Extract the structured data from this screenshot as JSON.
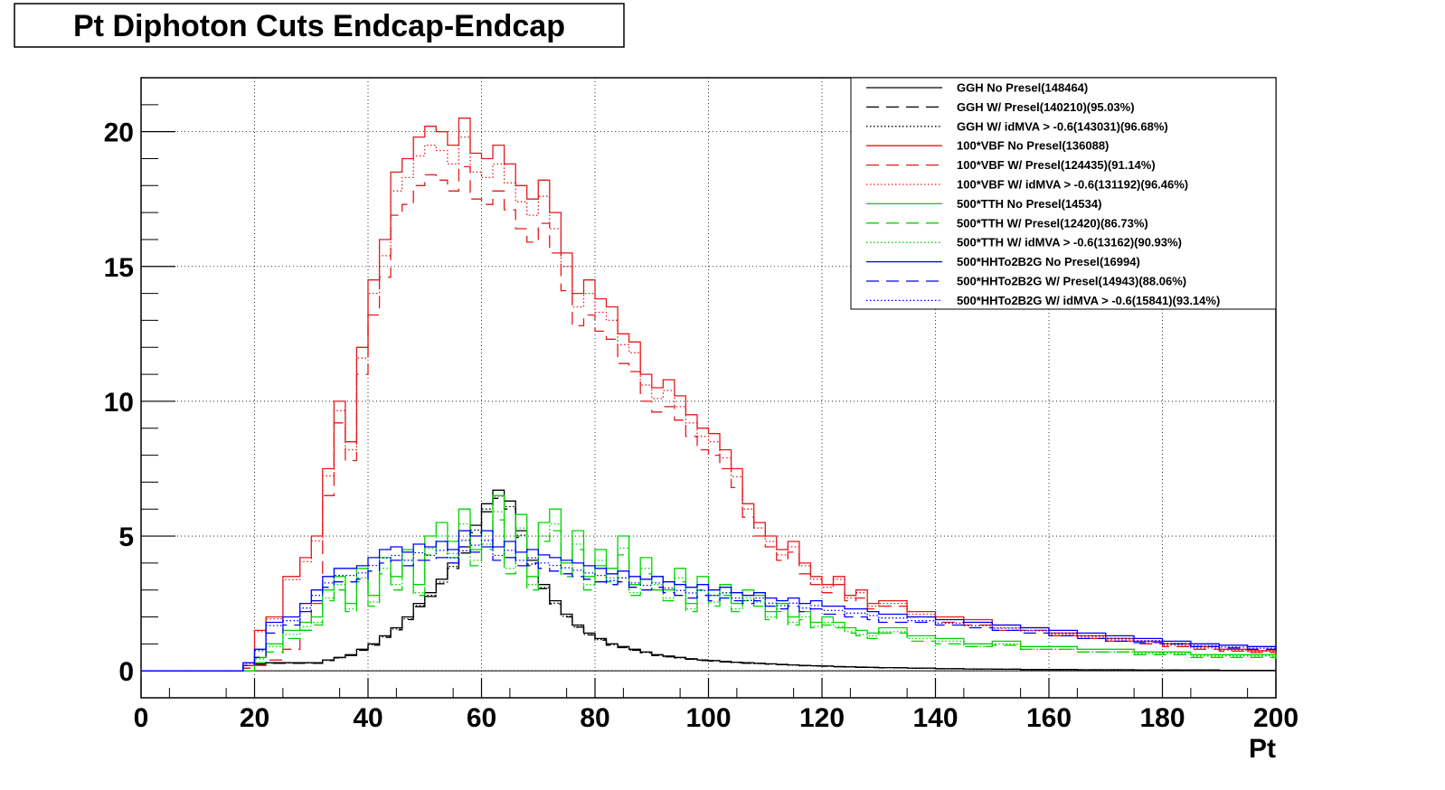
{
  "chart_data": {
    "type": "line",
    "title": "Pt Diphoton Cuts Endcap-Endcap",
    "xlabel": "Pt",
    "ylabel": "",
    "xlim": [
      0,
      200
    ],
    "ylim": [
      -1,
      22
    ],
    "grid": true,
    "legend_position": "top-right",
    "x_ticks": [
      "0",
      "20",
      "40",
      "60",
      "80",
      "100",
      "120",
      "140",
      "160",
      "180",
      "200"
    ],
    "y_ticks": [
      "0",
      "5",
      "10",
      "15",
      "20"
    ],
    "x": [
      0,
      5,
      10,
      15,
      18,
      20,
      22,
      25,
      28,
      30,
      32,
      34,
      36,
      38,
      40,
      42,
      44,
      46,
      48,
      50,
      52,
      54,
      56,
      58,
      60,
      62,
      64,
      66,
      68,
      70,
      72,
      74,
      76,
      78,
      80,
      82,
      84,
      86,
      88,
      90,
      92,
      94,
      96,
      98,
      100,
      102,
      104,
      106,
      108,
      110,
      112,
      114,
      116,
      118,
      120,
      122,
      124,
      126,
      128,
      130,
      135,
      140,
      145,
      150,
      155,
      160,
      165,
      170,
      175,
      180,
      185,
      190,
      195,
      200
    ],
    "series": [
      {
        "name": "GGH No Presel(148464)",
        "color": "#000000",
        "dash": "solid",
        "values": [
          0,
          0,
          0,
          0,
          0.2,
          0.3,
          0.3,
          0.3,
          0.3,
          0.3,
          0.4,
          0.5,
          0.6,
          0.8,
          1.0,
          1.3,
          1.6,
          2.0,
          2.5,
          2.9,
          3.4,
          4.0,
          4.6,
          5.4,
          6.2,
          6.7,
          6.3,
          5.2,
          4.1,
          3.2,
          2.6,
          2.1,
          1.7,
          1.4,
          1.2,
          1.0,
          0.9,
          0.8,
          0.7,
          0.6,
          0.55,
          0.5,
          0.45,
          0.4,
          0.38,
          0.35,
          0.32,
          0.3,
          0.28,
          0.26,
          0.24,
          0.22,
          0.2,
          0.19,
          0.18,
          0.16,
          0.15,
          0.14,
          0.13,
          0.12,
          0.1,
          0.08,
          0.07,
          0.06,
          0.05,
          0.05,
          0.04,
          0.04,
          0.03,
          0.03,
          0.03,
          0.02,
          0.02,
          0.02
        ]
      },
      {
        "name": "GGH W/ Presel(140210)(95.03%)",
        "color": "#000000",
        "dash": "long",
        "values": [
          0,
          0,
          0,
          0,
          0.1,
          0.25,
          0.28,
          0.28,
          0.28,
          0.28,
          0.38,
          0.48,
          0.57,
          0.76,
          0.95,
          1.24,
          1.52,
          1.9,
          2.38,
          2.76,
          3.23,
          3.8,
          4.37,
          5.13,
          5.9,
          6.4,
          6.0,
          4.95,
          3.9,
          3.05,
          2.48,
          2.0,
          1.62,
          1.33,
          1.14,
          0.95,
          0.86,
          0.76,
          0.67,
          0.57,
          0.52,
          0.48,
          0.43,
          0.38,
          0.36,
          0.33,
          0.3,
          0.28,
          0.27,
          0.25,
          0.23,
          0.21,
          0.19,
          0.18,
          0.17,
          0.15,
          0.14,
          0.13,
          0.12,
          0.11,
          0.1,
          0.08,
          0.07,
          0.06,
          0.05,
          0.05,
          0.04,
          0.04,
          0.03,
          0.03,
          0.03,
          0.02,
          0.02,
          0.02
        ]
      },
      {
        "name": "GGH W/ idMVA > -0.6(143031)(96.68%)",
        "color": "#000000",
        "dash": "dot",
        "values": [
          0,
          0,
          0,
          0,
          0.2,
          0.29,
          0.29,
          0.29,
          0.29,
          0.29,
          0.39,
          0.48,
          0.58,
          0.77,
          0.97,
          1.26,
          1.55,
          1.93,
          2.42,
          2.8,
          3.29,
          3.87,
          4.45,
          5.22,
          6.0,
          6.48,
          6.09,
          5.03,
          3.96,
          3.09,
          2.51,
          2.03,
          1.64,
          1.35,
          1.16,
          0.97,
          0.87,
          0.77,
          0.68,
          0.58,
          0.53,
          0.48,
          0.44,
          0.39,
          0.37,
          0.34,
          0.31,
          0.29,
          0.27,
          0.25,
          0.23,
          0.21,
          0.19,
          0.18,
          0.17,
          0.15,
          0.15,
          0.14,
          0.13,
          0.12,
          0.1,
          0.08,
          0.07,
          0.06,
          0.05,
          0.05,
          0.04,
          0.04,
          0.03,
          0.03,
          0.03,
          0.02,
          0.02,
          0.02
        ]
      },
      {
        "name": "100*VBF No Presel(136088)",
        "color": "#e31a1c",
        "dash": "solid",
        "values": [
          0,
          0,
          0,
          0,
          0.2,
          1.5,
          2.0,
          3.5,
          4.2,
          5.0,
          7.5,
          10.0,
          8.5,
          12.0,
          14.5,
          16.0,
          18.5,
          19.0,
          19.8,
          20.2,
          20.0,
          19.5,
          20.5,
          19.2,
          19.0,
          19.5,
          18.8,
          18.0,
          17.5,
          18.2,
          17.0,
          15.5,
          14.0,
          14.5,
          13.8,
          13.5,
          12.5,
          12.2,
          11.0,
          10.5,
          10.8,
          10.2,
          9.5,
          9.0,
          8.8,
          8.2,
          7.5,
          6.2,
          5.5,
          5.0,
          4.5,
          4.8,
          4.0,
          3.5,
          3.2,
          3.5,
          2.8,
          3.0,
          2.5,
          2.6,
          2.2,
          2.0,
          1.9,
          1.7,
          1.6,
          1.4,
          1.3,
          1.2,
          1.1,
          1.0,
          0.9,
          0.8,
          0.75,
          0.7
        ]
      },
      {
        "name": "100*VBF W/ Presel(124435)(91.14%)",
        "color": "#e31a1c",
        "dash": "long",
        "values": [
          0,
          0,
          0,
          0,
          0.1,
          0.2,
          0.4,
          0.8,
          1.5,
          2.5,
          6.5,
          9.2,
          7.8,
          11.0,
          13.2,
          14.6,
          16.9,
          17.3,
          18.0,
          18.4,
          18.2,
          17.8,
          18.7,
          17.5,
          17.3,
          17.8,
          17.1,
          16.4,
          15.9,
          16.6,
          15.5,
          14.1,
          12.8,
          13.2,
          12.6,
          12.3,
          11.4,
          11.1,
          10.0,
          9.6,
          9.8,
          9.3,
          8.7,
          8.2,
          8.0,
          7.5,
          6.8,
          5.7,
          5.0,
          4.6,
          4.1,
          4.4,
          3.6,
          3.2,
          2.9,
          3.2,
          2.6,
          2.7,
          2.3,
          2.4,
          2.0,
          1.8,
          1.7,
          1.5,
          1.5,
          1.3,
          1.2,
          1.1,
          1.0,
          0.9,
          0.8,
          0.73,
          0.68,
          0.64
        ]
      },
      {
        "name": "100*VBF W/ idMVA > -0.6(131192)(96.46%)",
        "color": "#e31a1c",
        "dash": "dot",
        "values": [
          0,
          0,
          0,
          0,
          0.2,
          1.45,
          1.93,
          3.38,
          4.05,
          4.82,
          7.23,
          9.65,
          8.2,
          11.6,
          14.0,
          15.4,
          17.8,
          18.3,
          19.1,
          19.5,
          19.3,
          18.8,
          19.8,
          18.5,
          18.3,
          18.8,
          18.1,
          17.4,
          16.9,
          17.6,
          16.4,
          15.0,
          13.5,
          14.0,
          13.3,
          13.0,
          12.1,
          11.8,
          10.6,
          10.1,
          10.4,
          9.8,
          9.2,
          8.7,
          8.5,
          7.9,
          7.2,
          6.0,
          5.3,
          4.8,
          4.3,
          4.6,
          3.9,
          3.4,
          3.1,
          3.4,
          2.7,
          2.9,
          2.4,
          2.5,
          2.1,
          1.9,
          1.8,
          1.6,
          1.5,
          1.35,
          1.25,
          1.15,
          1.05,
          0.95,
          0.85,
          0.77,
          0.72,
          0.68
        ]
      },
      {
        "name": "500*TTH No Presel(14534)",
        "color": "#00d400",
        "dash": "solid",
        "values": [
          0,
          0,
          0,
          0,
          0,
          0.5,
          1.0,
          1.5,
          1.8,
          2.0,
          3.0,
          3.5,
          2.5,
          3.8,
          2.8,
          4.2,
          3.5,
          4.5,
          3.2,
          5.0,
          5.5,
          4.8,
          6.0,
          4.5,
          5.2,
          6.5,
          4.2,
          5.8,
          3.5,
          5.5,
          6.0,
          4.0,
          5.2,
          3.5,
          4.5,
          3.8,
          5.0,
          3.2,
          4.2,
          3.5,
          3.0,
          3.8,
          2.5,
          3.5,
          2.8,
          3.2,
          2.5,
          3.0,
          2.8,
          2.2,
          2.5,
          2.0,
          2.2,
          1.8,
          2.0,
          1.8,
          1.6,
          1.5,
          1.4,
          1.6,
          1.3,
          1.2,
          1.0,
          1.1,
          0.9,
          0.9,
          0.8,
          0.8,
          0.7,
          0.7,
          0.6,
          0.6,
          0.6,
          0.5
        ]
      },
      {
        "name": "500*TTH W/ Presel(12420)(86.73%)",
        "color": "#00d400",
        "dash": "long",
        "values": [
          0,
          0,
          0,
          0,
          0,
          0.3,
          0.7,
          1.2,
          1.5,
          1.7,
          2.6,
          3.0,
          2.2,
          3.3,
          2.4,
          3.6,
          3.0,
          3.9,
          2.8,
          4.3,
          4.8,
          4.2,
          5.2,
          3.9,
          4.5,
          5.6,
          3.6,
          5.0,
          3.0,
          4.8,
          5.2,
          3.5,
          4.5,
          3.0,
          3.9,
          3.3,
          4.3,
          2.8,
          3.6,
          3.0,
          2.6,
          3.3,
          2.2,
          3.0,
          2.4,
          2.8,
          2.2,
          2.6,
          2.4,
          1.9,
          2.2,
          1.7,
          1.9,
          1.6,
          1.7,
          1.6,
          1.4,
          1.3,
          1.2,
          1.4,
          1.1,
          1.0,
          0.9,
          0.95,
          0.8,
          0.8,
          0.7,
          0.7,
          0.6,
          0.6,
          0.5,
          0.5,
          0.5,
          0.45
        ]
      },
      {
        "name": "500*TTH W/ idMVA > -0.6(13162)(90.93%)",
        "color": "#00d400",
        "dash": "dot",
        "values": [
          0,
          0,
          0,
          0,
          0,
          0.45,
          0.9,
          1.35,
          1.65,
          1.8,
          2.7,
          3.2,
          2.3,
          3.45,
          2.55,
          3.8,
          3.2,
          4.1,
          2.9,
          4.55,
          5.0,
          4.35,
          5.45,
          4.1,
          4.7,
          5.9,
          3.8,
          5.3,
          3.2,
          5.0,
          5.45,
          3.6,
          4.7,
          3.2,
          4.1,
          3.45,
          4.55,
          2.9,
          3.8,
          3.2,
          2.7,
          3.45,
          2.3,
          3.2,
          2.55,
          2.9,
          2.3,
          2.7,
          2.55,
          2.0,
          2.3,
          1.8,
          2.0,
          1.65,
          1.8,
          1.65,
          1.45,
          1.35,
          1.3,
          1.45,
          1.2,
          1.1,
          0.9,
          1.0,
          0.8,
          0.8,
          0.7,
          0.7,
          0.65,
          0.65,
          0.55,
          0.55,
          0.55,
          0.45
        ]
      },
      {
        "name": "500*HHTo2B2G No Presel(16994)",
        "color": "#0000ff",
        "dash": "solid",
        "values": [
          0,
          0,
          0,
          0,
          0.3,
          0.8,
          1.8,
          2.0,
          2.5,
          3.0,
          3.5,
          3.8,
          3.8,
          3.9,
          4.2,
          4.5,
          4.6,
          4.4,
          4.7,
          4.6,
          4.8,
          4.5,
          5.2,
          5.0,
          5.2,
          4.6,
          4.8,
          4.4,
          4.5,
          4.3,
          4.2,
          4.1,
          4.0,
          3.9,
          3.8,
          3.6,
          3.7,
          3.5,
          3.4,
          3.5,
          3.3,
          3.2,
          3.1,
          3.2,
          3.0,
          3.1,
          2.9,
          2.8,
          2.9,
          2.7,
          2.6,
          2.7,
          2.5,
          2.6,
          2.4,
          2.4,
          2.3,
          2.3,
          2.2,
          2.1,
          2.0,
          1.9,
          1.8,
          1.7,
          1.6,
          1.5,
          1.4,
          1.3,
          1.2,
          1.1,
          1.0,
          0.95,
          0.9,
          0.85
        ]
      },
      {
        "name": "500*HHTo2B2G W/ Presel(14943)(88.06%)",
        "color": "#0000ff",
        "dash": "long",
        "values": [
          0,
          0,
          0,
          0,
          0.2,
          0.5,
          1.4,
          1.7,
          2.2,
          2.6,
          3.1,
          3.3,
          3.3,
          3.4,
          3.7,
          4.0,
          4.1,
          3.9,
          4.1,
          4.1,
          4.2,
          4.0,
          4.6,
          4.4,
          4.6,
          4.1,
          4.2,
          3.9,
          4.0,
          3.8,
          3.7,
          3.6,
          3.5,
          3.4,
          3.3,
          3.2,
          3.3,
          3.1,
          3.0,
          3.1,
          2.9,
          2.8,
          2.7,
          2.8,
          2.6,
          2.7,
          2.6,
          2.5,
          2.6,
          2.4,
          2.3,
          2.4,
          2.2,
          2.3,
          2.1,
          2.1,
          2.0,
          2.0,
          1.9,
          1.8,
          1.8,
          1.7,
          1.6,
          1.5,
          1.4,
          1.3,
          1.2,
          1.1,
          1.05,
          1.0,
          0.9,
          0.85,
          0.8,
          0.75
        ]
      },
      {
        "name": "500*HHTo2B2G W/ idMVA > -0.6(15841)(93.14%)",
        "color": "#0000ff",
        "dash": "dot",
        "values": [
          0,
          0,
          0,
          0,
          0.28,
          0.75,
          1.68,
          1.86,
          2.33,
          2.8,
          3.26,
          3.54,
          3.54,
          3.63,
          3.91,
          4.19,
          4.28,
          4.1,
          4.38,
          4.28,
          4.47,
          4.19,
          4.84,
          4.66,
          4.84,
          4.28,
          4.47,
          4.1,
          4.19,
          4.0,
          3.91,
          3.82,
          3.73,
          3.63,
          3.54,
          3.35,
          3.45,
          3.26,
          3.17,
          3.26,
          3.07,
          2.98,
          2.89,
          2.98,
          2.8,
          2.89,
          2.7,
          2.61,
          2.7,
          2.51,
          2.42,
          2.51,
          2.33,
          2.42,
          2.24,
          2.24,
          2.14,
          2.14,
          2.05,
          1.96,
          1.86,
          1.77,
          1.68,
          1.58,
          1.49,
          1.4,
          1.3,
          1.21,
          1.12,
          1.02,
          0.93,
          0.88,
          0.84,
          0.79
        ]
      }
    ]
  }
}
